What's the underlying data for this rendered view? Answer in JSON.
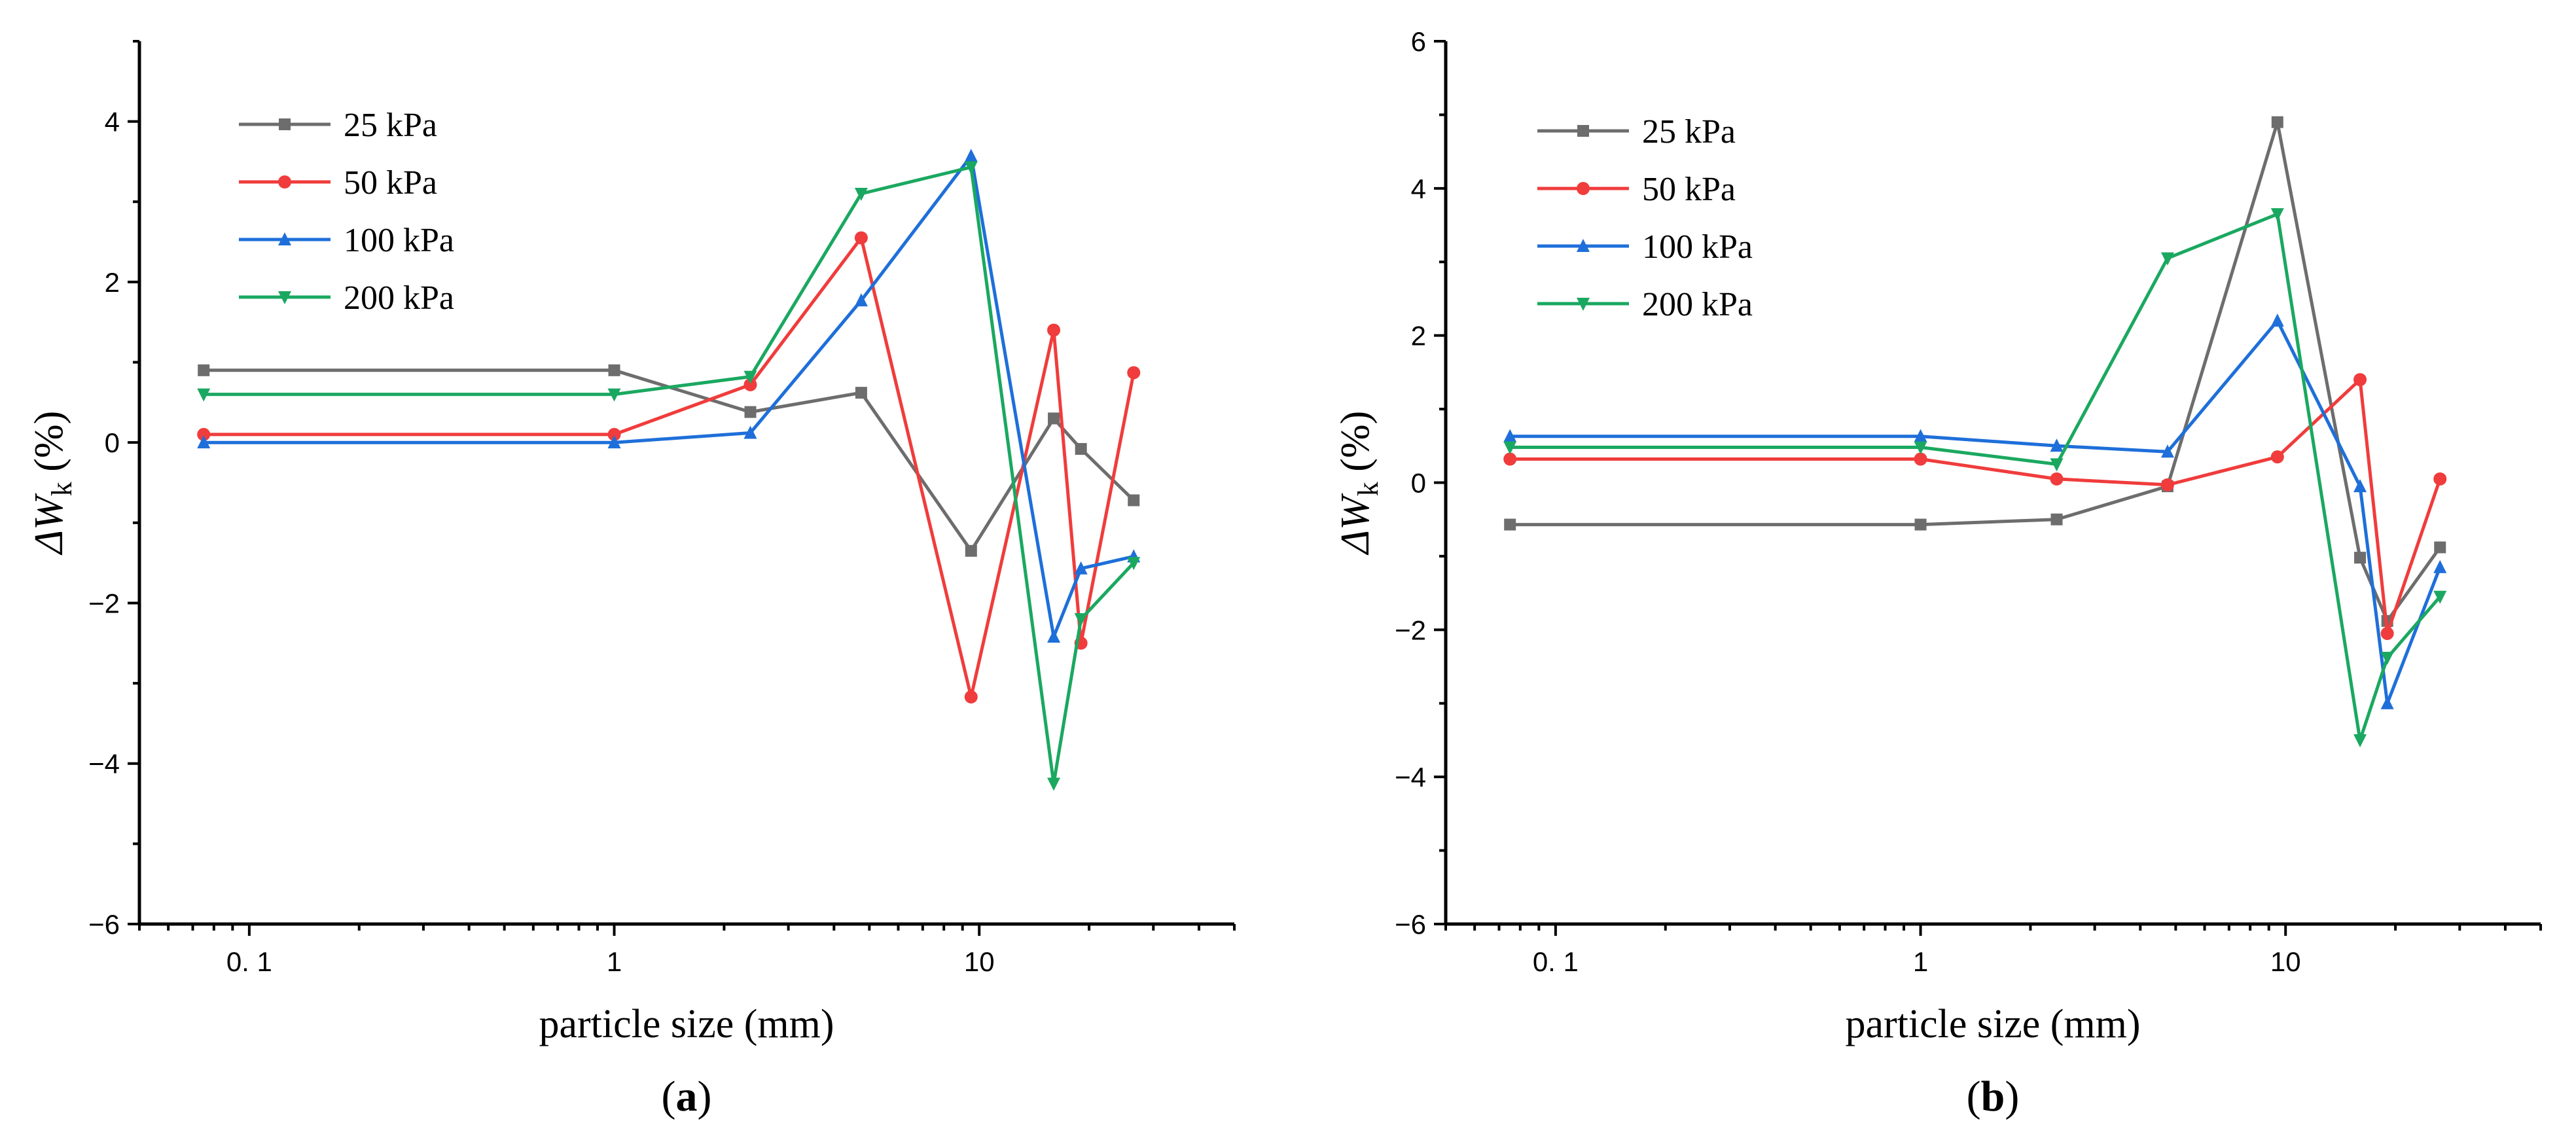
{
  "chart_data": [
    {
      "type": "line",
      "panel_label": "a",
      "xlabel": "particle size (mm)",
      "ylabel_prefix": "ΔW",
      "ylabel_sub": "k",
      "ylabel_suffix": " (%)",
      "xscale": "log",
      "xlim": [
        0.05,
        50
      ],
      "ylim": [
        -6,
        5
      ],
      "x_ticks": [
        {
          "value": 0.1,
          "label": "0. 1"
        },
        {
          "value": 1,
          "label": "1"
        },
        {
          "value": 10,
          "label": "10"
        }
      ],
      "y_ticks": [
        {
          "value": -6,
          "label": "−6"
        },
        {
          "value": -4,
          "label": "−4"
        },
        {
          "value": -2,
          "label": "−2"
        },
        {
          "value": 0,
          "label": "0"
        },
        {
          "value": 2,
          "label": "2"
        },
        {
          "value": 4,
          "label": "4"
        }
      ],
      "legend_position": "top-left",
      "x": [
        0.075,
        1,
        2.36,
        4.75,
        9.5,
        16,
        19,
        26.5
      ],
      "series": [
        {
          "name": "25 kPa",
          "color": "#6d6d6d",
          "marker": "square",
          "values": [
            0.9,
            0.9,
            0.38,
            0.62,
            -1.35,
            0.3,
            -0.08,
            -0.72
          ]
        },
        {
          "name": "50 kPa",
          "color": "#f03c3c",
          "marker": "circle",
          "values": [
            0.1,
            0.1,
            0.72,
            2.55,
            -3.17,
            1.4,
            -2.5,
            0.87
          ]
        },
        {
          "name": "100 kPa",
          "color": "#1e6fd9",
          "marker": "triangle-up",
          "values": [
            0.0,
            0.0,
            0.12,
            1.77,
            3.57,
            -2.42,
            -1.57,
            -1.42
          ]
        },
        {
          "name": "200 kPa",
          "color": "#1aa860",
          "marker": "triangle-down",
          "values": [
            0.6,
            0.6,
            0.82,
            3.1,
            3.43,
            -4.25,
            -2.2,
            -1.5
          ]
        }
      ]
    },
    {
      "type": "line",
      "panel_label": "b",
      "xlabel": "particle size (mm)",
      "ylabel_prefix": "ΔW",
      "ylabel_sub": "k",
      "ylabel_suffix": " (%)",
      "xscale": "log",
      "xlim": [
        0.05,
        50
      ],
      "ylim": [
        -6,
        6
      ],
      "x_ticks": [
        {
          "value": 0.1,
          "label": "0. 1"
        },
        {
          "value": 1,
          "label": "1"
        },
        {
          "value": 10,
          "label": "10"
        }
      ],
      "y_ticks": [
        {
          "value": -6,
          "label": "−6"
        },
        {
          "value": -4,
          "label": "−4"
        },
        {
          "value": -2,
          "label": "−2"
        },
        {
          "value": 0,
          "label": "0"
        },
        {
          "value": 2,
          "label": "2"
        },
        {
          "value": 4,
          "label": "4"
        },
        {
          "value": 6,
          "label": "6"
        }
      ],
      "legend_position": "top-left",
      "x": [
        0.075,
        1,
        2.36,
        4.75,
        9.5,
        16,
        19,
        26.5
      ],
      "series": [
        {
          "name": "25 kPa",
          "color": "#6d6d6d",
          "marker": "square",
          "values": [
            -0.57,
            -0.57,
            -0.5,
            -0.05,
            4.9,
            -1.02,
            -1.88,
            -0.88
          ]
        },
        {
          "name": "50 kPa",
          "color": "#f03c3c",
          "marker": "circle",
          "values": [
            0.32,
            0.32,
            0.05,
            -0.03,
            0.35,
            1.4,
            -2.05,
            0.05
          ]
        },
        {
          "name": "100 kPa",
          "color": "#1e6fd9",
          "marker": "triangle-up",
          "values": [
            0.63,
            0.63,
            0.5,
            0.42,
            2.2,
            -0.05,
            -3.0,
            -1.15
          ]
        },
        {
          "name": "200 kPa",
          "color": "#1aa860",
          "marker": "triangle-down",
          "values": [
            0.48,
            0.48,
            0.25,
            3.05,
            3.65,
            -3.5,
            -2.38,
            -1.55
          ]
        }
      ]
    }
  ]
}
